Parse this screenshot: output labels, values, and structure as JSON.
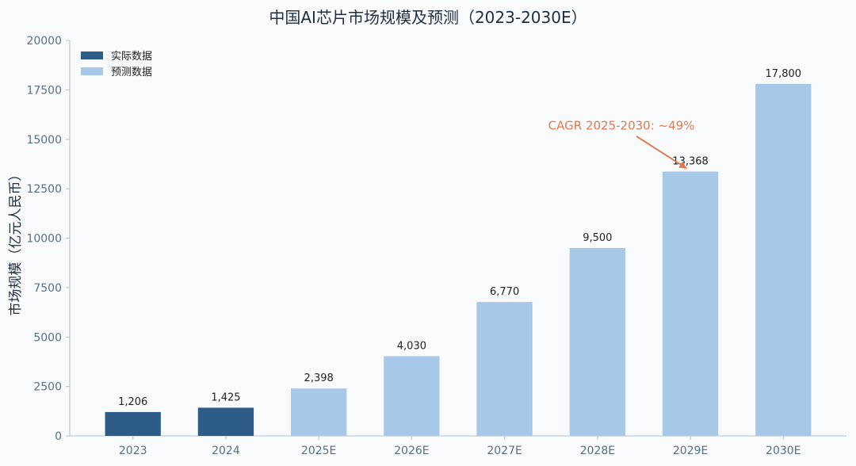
{
  "chart_data": {
    "type": "bar",
    "title": "中国AI芯片市场规模及预测（2023-2030E）",
    "xlabel": "",
    "ylabel": "市场规模（亿元人民币）",
    "categories": [
      "2023",
      "2024",
      "2025E",
      "2026E",
      "2027E",
      "2028E",
      "2029E",
      "2030E"
    ],
    "series": [
      {
        "name": "实际数据",
        "color": "#2c5c87",
        "values": [
          1206,
          1425,
          null,
          null,
          null,
          null,
          null,
          null
        ]
      },
      {
        "name": "预测数据",
        "color": "#a8c8e8",
        "values": [
          null,
          null,
          2398,
          4030,
          6770,
          9500,
          13368,
          17800
        ]
      }
    ],
    "data_labels": [
      "1,206",
      "1,425",
      "2,398",
      "4,030",
      "6,770",
      "9,500",
      "13,368",
      "17,800"
    ],
    "ylim": [
      0,
      20000
    ],
    "yticks": [
      0,
      2500,
      5000,
      7500,
      10000,
      12500,
      15000,
      17500,
      20000
    ],
    "grid": false,
    "legend": {
      "placement": "top-left"
    },
    "annotation": {
      "text": "CAGR 2025-2030: ~49%",
      "target_category": "2029E",
      "target_value": 13368,
      "color": "#e07b4f"
    }
  }
}
